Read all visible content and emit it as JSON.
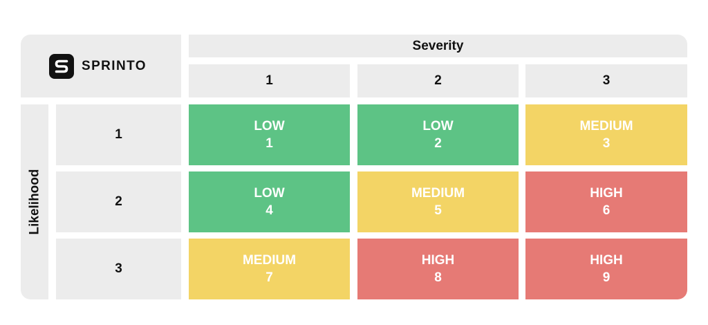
{
  "brand": {
    "name": "SPRINTO",
    "logo_glyph": "S"
  },
  "matrix": {
    "column_axis_title": "Severity",
    "row_axis_title": "Likelihood",
    "columns": [
      "1",
      "2",
      "3"
    ],
    "rows": [
      "1",
      "2",
      "3"
    ],
    "cells": [
      [
        {
          "level": "LOW",
          "score": "1"
        },
        {
          "level": "LOW",
          "score": "2"
        },
        {
          "level": "MEDIUM",
          "score": "3"
        }
      ],
      [
        {
          "level": "LOW",
          "score": "4"
        },
        {
          "level": "MEDIUM",
          "score": "5"
        },
        {
          "level": "HIGH",
          "score": "6"
        }
      ],
      [
        {
          "level": "MEDIUM",
          "score": "7"
        },
        {
          "level": "HIGH",
          "score": "8"
        },
        {
          "level": "HIGH",
          "score": "9"
        }
      ]
    ]
  },
  "colors": {
    "low": "#5dc385",
    "medium": "#f3d465",
    "high": "#e67a75",
    "header_background": "#ececec",
    "logo_badge": "#111111"
  }
}
